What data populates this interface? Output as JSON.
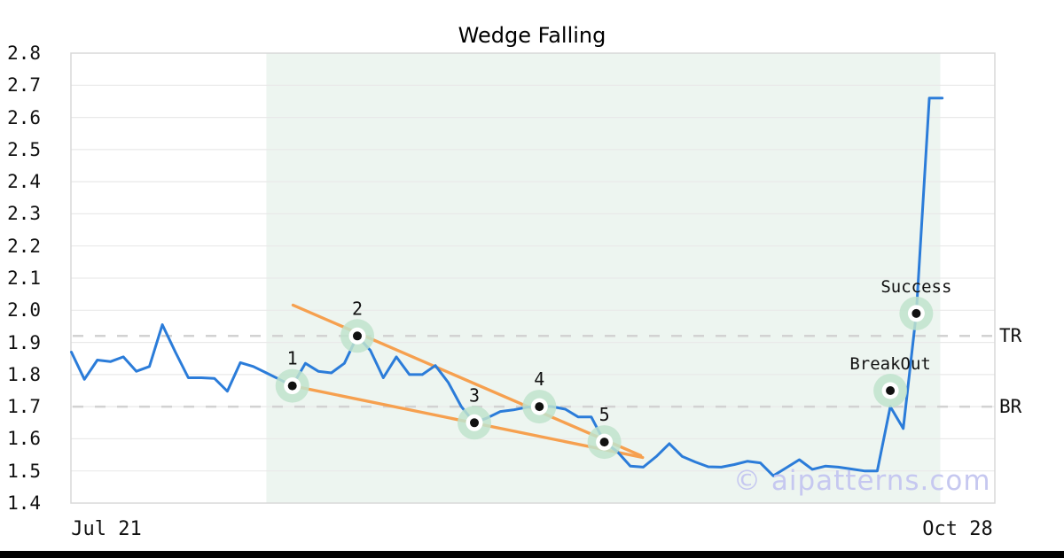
{
  "colors": {
    "price_line": "#2b7cd9",
    "trendline": "#f6a04f",
    "marker_fill": "#bfe3cc",
    "marker_dot": "#111111",
    "region_fill": "#edf5f0",
    "level_dash": "#d2d2d2",
    "gridline": "#e9e9e9",
    "plot_border": "#d8d8d8",
    "label_color": "#111111",
    "watermark_color": "#c6c8f0",
    "bottom_bar": "#000000"
  },
  "watermark": {
    "text": "© aipatterns.com"
  },
  "chart_data": {
    "type": "line",
    "title": "Wedge Falling",
    "xlabel": "",
    "ylabel": "",
    "ylim": [
      1.4,
      2.8
    ],
    "ytick_step": 0.1,
    "grid": "horizontal",
    "legend": "none",
    "xticks": [
      {
        "label": "Jul 21"
      },
      {
        "label": "Oct 28"
      }
    ],
    "series": [
      {
        "name": "price",
        "values": [
          1.87,
          1.785,
          1.845,
          1.84,
          1.855,
          1.81,
          1.825,
          1.955,
          1.87,
          1.79,
          1.79,
          1.788,
          1.748,
          1.837,
          1.825,
          1.805,
          1.785,
          1.765,
          1.835,
          1.81,
          1.805,
          1.835,
          1.92,
          1.875,
          1.79,
          1.855,
          1.8,
          1.8,
          1.828,
          1.775,
          1.7,
          1.65,
          1.665,
          1.685,
          1.69,
          1.698,
          1.703,
          1.7,
          1.692,
          1.668,
          1.668,
          1.59,
          1.56,
          1.515,
          1.512,
          1.545,
          1.585,
          1.545,
          1.528,
          1.513,
          1.512,
          1.52,
          1.53,
          1.525,
          1.485,
          1.51,
          1.535,
          1.505,
          1.515,
          1.512,
          1.506,
          1.5,
          1.5,
          1.7,
          1.632,
          1.99,
          2.66,
          2.66
        ]
      }
    ],
    "levels": [
      {
        "label": "TR",
        "value": 1.92
      },
      {
        "label": "BR",
        "value": 1.7
      }
    ],
    "markers": [
      {
        "label": "1",
        "day": 17,
        "value": 1.765
      },
      {
        "label": "2",
        "day": 22,
        "value": 1.92
      },
      {
        "label": "3",
        "day": 31,
        "value": 1.65
      },
      {
        "label": "4",
        "day": 36,
        "value": 1.7
      },
      {
        "label": "5",
        "day": 41,
        "value": 1.59
      },
      {
        "label": "BreakOut",
        "day": 63,
        "value": 1.75
      },
      {
        "label": "Success",
        "day": 65,
        "value": 1.99
      }
    ],
    "trendlines": [
      {
        "name": "upper",
        "start_day": 17.05,
        "start_value": 2.016,
        "end_day": 43.8,
        "end_value": 1.548
      },
      {
        "name": "lower",
        "start_day": 17.0,
        "start_value": 1.765,
        "end_day": 43.95,
        "end_value": 1.542
      }
    ],
    "pattern_region": {
      "start_day": 15.0,
      "end_day": 66.85
    }
  }
}
